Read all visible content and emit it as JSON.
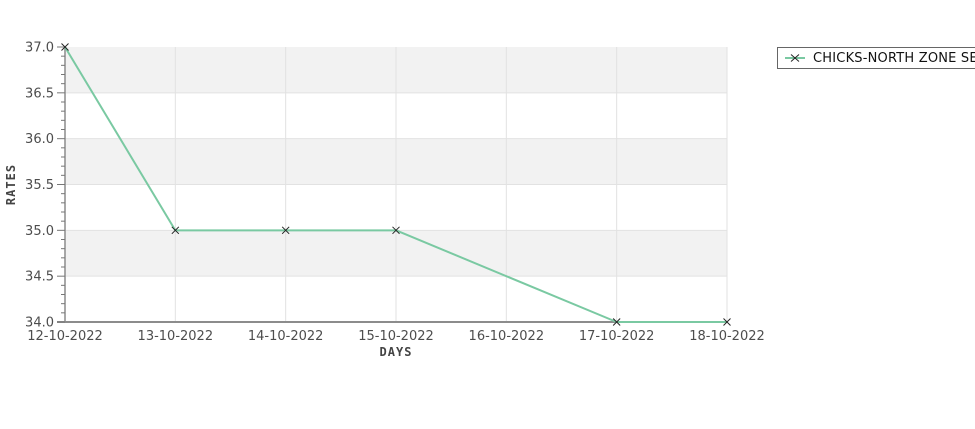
{
  "chart_data": {
    "type": "line",
    "title": "",
    "xlabel": "DAYS",
    "ylabel": "RATES",
    "categories": [
      "12-10-2022",
      "13-10-2022",
      "14-10-2022",
      "15-10-2022",
      "16-10-2022",
      "17-10-2022",
      "18-10-2022"
    ],
    "series": [
      {
        "name": "CHICKS-NORTH ZONE SELLING",
        "values": [
          37.0,
          35.0,
          35.0,
          35.0,
          null,
          34.0,
          34.0
        ],
        "marker": "x"
      }
    ],
    "ylim": [
      34.0,
      37.0
    ],
    "ytick_labels": [
      "37.0",
      "36.5",
      "36.0",
      "35.5",
      "35.0",
      "34.5",
      "34.0"
    ],
    "minor_ticks_per_interval": 4,
    "grid": true,
    "alternating_bands": true,
    "legend_position": "top-right"
  },
  "legend": {
    "items": [
      {
        "label": "CHICKS-NORTH ZONE SELLING",
        "marker": "x"
      }
    ]
  },
  "colors": {
    "series_line": "#7ac9a2",
    "marker": "#252525",
    "band": "#f2f2f2",
    "gridline": "#e2e2e2",
    "axis_line": "#8c8c8c",
    "tick": "#777777",
    "tick_label": "#4d4d4d",
    "axis_title": "#444444",
    "legend_border": "#666666",
    "legend_text": "#111111",
    "background": "#ffffff"
  }
}
